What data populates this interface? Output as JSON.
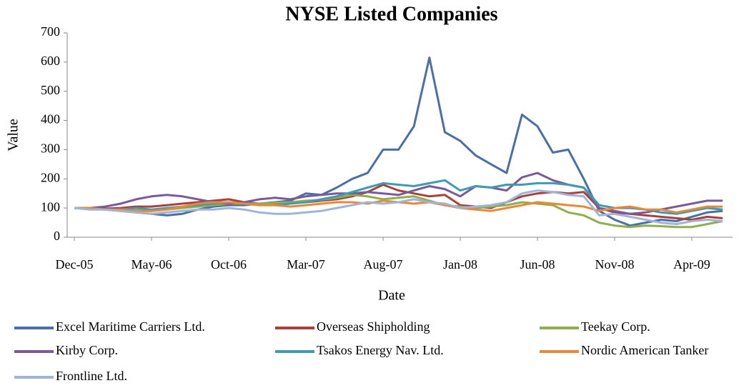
{
  "chart_data": {
    "type": "line",
    "title": "NYSE Listed Companies",
    "x_label": "Date",
    "y_label": "Value",
    "x": [
      "Dec-05",
      "Jan-06",
      "Feb-06",
      "Mar-06",
      "Apr-06",
      "May-06",
      "Jun-06",
      "Jul-06",
      "Aug-06",
      "Sep-06",
      "Oct-06",
      "Nov-06",
      "Dec-06",
      "Jan-07",
      "Feb-07",
      "Mar-07",
      "Apr-07",
      "May-07",
      "Jun-07",
      "Jul-07",
      "Aug-07",
      "Sep-07",
      "Oct-07",
      "Nov-07",
      "Dec-07",
      "Jan-08",
      "Feb-08",
      "Mar-08",
      "Apr-08",
      "May-08",
      "Jun-08",
      "Jul-08",
      "Aug-08",
      "Sep-08",
      "Oct-08",
      "Nov-08",
      "Dec-08",
      "Jan-09",
      "Feb-09",
      "Mar-09",
      "Apr-09",
      "May-09",
      "Jun-09"
    ],
    "xticks": [
      "Dec-05",
      "May-06",
      "Oct-06",
      "Mar-07",
      "Aug-07",
      "Jan-08",
      "Jun-08",
      "Nov-08",
      "Apr-09"
    ],
    "ylim": [
      0,
      700
    ],
    "yticks": [
      0,
      100,
      200,
      300,
      400,
      500,
      600,
      700
    ],
    "grid": false,
    "series": [
      {
        "name": "Excel Maritime Carriers Ltd.",
        "color": "#4a6fa8",
        "values": [
          100,
          100,
          95,
          90,
          85,
          80,
          75,
          80,
          95,
          105,
          110,
          110,
          115,
          120,
          125,
          150,
          145,
          170,
          200,
          220,
          300,
          300,
          380,
          615,
          360,
          330,
          280,
          250,
          220,
          420,
          380,
          290,
          300,
          200,
          90,
          60,
          40,
          50,
          60,
          55,
          70,
          85,
          90
        ]
      },
      {
        "name": "Overseas Shipholding",
        "color": "#a8403c",
        "values": [
          100,
          100,
          98,
          100,
          105,
          105,
          110,
          115,
          120,
          125,
          130,
          120,
          115,
          115,
          118,
          120,
          125,
          130,
          140,
          155,
          180,
          160,
          150,
          140,
          145,
          110,
          105,
          100,
          120,
          140,
          150,
          155,
          150,
          155,
          100,
          85,
          80,
          75,
          70,
          65,
          60,
          70,
          65
        ]
      },
      {
        "name": "Teekay Corp.",
        "color": "#8db04a",
        "values": [
          100,
          98,
          95,
          90,
          92,
          90,
          95,
          100,
          105,
          110,
          115,
          115,
          115,
          118,
          120,
          125,
          128,
          135,
          145,
          140,
          130,
          135,
          140,
          125,
          110,
          105,
          100,
          105,
          110,
          120,
          115,
          110,
          85,
          75,
          50,
          40,
          35,
          40,
          38,
          35,
          35,
          45,
          55
        ]
      },
      {
        "name": "Kirby Corp.",
        "color": "#7a5a9b",
        "values": [
          100,
          100,
          105,
          115,
          130,
          140,
          145,
          140,
          130,
          120,
          115,
          120,
          130,
          135,
          130,
          140,
          145,
          150,
          150,
          155,
          150,
          145,
          160,
          175,
          165,
          140,
          175,
          170,
          160,
          205,
          220,
          195,
          180,
          170,
          100,
          90,
          80,
          85,
          95,
          105,
          115,
          125,
          125
        ]
      },
      {
        "name": "Tsakos Energy Nav. Ltd.",
        "color": "#3f9cb0",
        "values": [
          100,
          98,
          95,
          95,
          100,
          95,
          100,
          105,
          110,
          115,
          120,
          115,
          110,
          110,
          115,
          120,
          130,
          140,
          155,
          170,
          185,
          180,
          175,
          185,
          195,
          160,
          175,
          170,
          180,
          180,
          185,
          185,
          180,
          170,
          110,
          100,
          100,
          95,
          85,
          80,
          90,
          100,
          95
        ]
      },
      {
        "name": "Nordic American Tanker",
        "color": "#e8883a",
        "values": [
          100,
          100,
          95,
          95,
          90,
          90,
          95,
          105,
          115,
          120,
          120,
          115,
          110,
          110,
          105,
          110,
          115,
          120,
          120,
          115,
          125,
          120,
          115,
          120,
          110,
          100,
          95,
          90,
          100,
          110,
          120,
          115,
          110,
          105,
          90,
          100,
          105,
          95,
          95,
          85,
          95,
          105,
          105
        ]
      },
      {
        "name": "Frontline Ltd.",
        "color": "#9fb4d8",
        "values": [
          100,
          95,
          95,
          90,
          85,
          80,
          85,
          90,
          95,
          95,
          100,
          95,
          85,
          80,
          80,
          85,
          90,
          100,
          110,
          120,
          115,
          120,
          130,
          120,
          115,
          100,
          105,
          110,
          120,
          150,
          160,
          155,
          145,
          140,
          75,
          80,
          70,
          60,
          50,
          45,
          55,
          60,
          55
        ]
      }
    ]
  }
}
